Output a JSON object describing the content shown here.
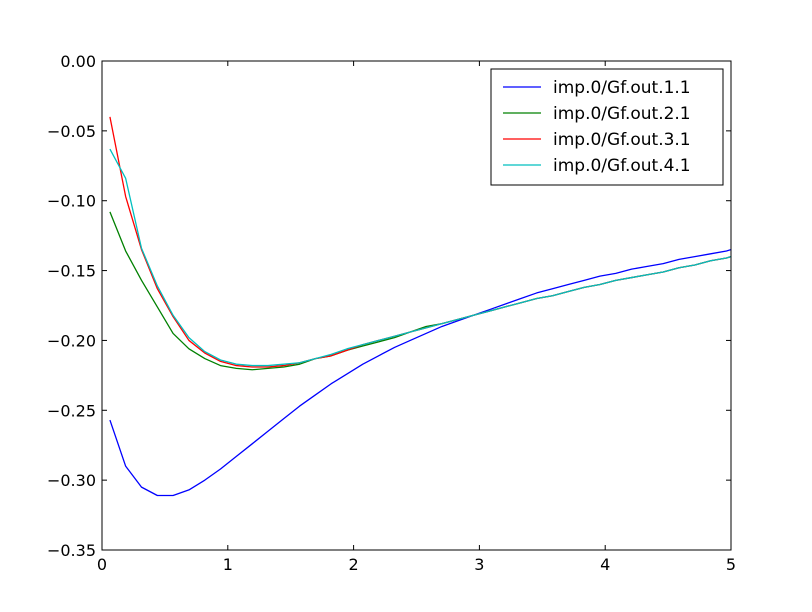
{
  "chart_data": {
    "type": "line",
    "title": "",
    "xlabel": "",
    "ylabel": "",
    "xlim": [
      0,
      5
    ],
    "ylim": [
      -0.35,
      0.0
    ],
    "grid": false,
    "legend_position": "top-right",
    "x_ticks": [
      {
        "value": 0,
        "label": "0"
      },
      {
        "value": 1,
        "label": "1"
      },
      {
        "value": 2,
        "label": "2"
      },
      {
        "value": 3,
        "label": "3"
      },
      {
        "value": 4,
        "label": "4"
      },
      {
        "value": 5,
        "label": "5"
      }
    ],
    "y_ticks": [
      {
        "value": 0.0,
        "label": "0.00"
      },
      {
        "value": -0.05,
        "label": "−0.05"
      },
      {
        "value": -0.1,
        "label": "−0.10"
      },
      {
        "value": -0.15,
        "label": "−0.15"
      },
      {
        "value": -0.2,
        "label": "−0.20"
      },
      {
        "value": -0.25,
        "label": "−0.25"
      },
      {
        "value": -0.3,
        "label": "−0.30"
      },
      {
        "value": -0.35,
        "label": "−0.35"
      }
    ],
    "series": [
      {
        "name": "imp.0/Gf.out.1.1",
        "color": "#0000ff",
        "x": [
          0.063,
          0.188,
          0.314,
          0.44,
          0.565,
          0.691,
          0.817,
          0.942,
          1.068,
          1.194,
          1.319,
          1.445,
          1.571,
          1.696,
          1.822,
          1.948,
          2.073,
          2.199,
          2.325,
          2.45,
          2.576,
          2.702,
          2.827,
          2.953,
          3.079,
          3.204,
          3.33,
          3.456,
          3.581,
          3.707,
          3.833,
          3.958,
          4.084,
          4.21,
          4.335,
          4.461,
          4.587,
          4.712,
          4.838,
          4.964,
          5.0
        ],
        "y": [
          -0.257,
          -0.29,
          -0.305,
          -0.311,
          -0.311,
          -0.307,
          -0.3,
          -0.292,
          -0.283,
          -0.274,
          -0.265,
          -0.256,
          -0.247,
          -0.239,
          -0.231,
          -0.224,
          -0.217,
          -0.211,
          -0.205,
          -0.2,
          -0.195,
          -0.19,
          -0.186,
          -0.182,
          -0.178,
          -0.174,
          -0.17,
          -0.166,
          -0.163,
          -0.16,
          -0.157,
          -0.154,
          -0.152,
          -0.149,
          -0.147,
          -0.145,
          -0.142,
          -0.14,
          -0.138,
          -0.136,
          -0.135
        ]
      },
      {
        "name": "imp.0/Gf.out.2.1",
        "color": "#008000",
        "x": [
          0.063,
          0.188,
          0.314,
          0.44,
          0.565,
          0.691,
          0.817,
          0.942,
          1.068,
          1.194,
          1.319,
          1.445,
          1.571,
          1.696,
          1.822,
          1.948,
          2.073,
          2.199,
          2.325,
          2.45,
          2.576,
          2.702,
          2.827,
          2.953,
          3.079,
          3.204,
          3.33,
          3.456,
          3.581,
          3.707,
          3.833,
          3.958,
          4.084,
          4.21,
          4.335,
          4.461,
          4.587,
          4.712,
          4.838,
          4.964,
          5.0
        ],
        "y": [
          -0.108,
          -0.136,
          -0.157,
          -0.176,
          -0.195,
          -0.206,
          -0.213,
          -0.218,
          -0.22,
          -0.221,
          -0.22,
          -0.219,
          -0.217,
          -0.213,
          -0.211,
          -0.207,
          -0.204,
          -0.201,
          -0.198,
          -0.194,
          -0.19,
          -0.188,
          -0.185,
          -0.182,
          -0.179,
          -0.176,
          -0.173,
          -0.17,
          -0.168,
          -0.165,
          -0.162,
          -0.16,
          -0.157,
          -0.155,
          -0.153,
          -0.151,
          -0.148,
          -0.146,
          -0.143,
          -0.141,
          -0.14
        ]
      },
      {
        "name": "imp.0/Gf.out.3.1",
        "color": "#ff0000",
        "x": [
          0.063,
          0.188,
          0.314,
          0.44,
          0.565,
          0.691,
          0.817,
          0.942,
          1.068,
          1.194,
          1.319,
          1.445,
          1.571,
          1.696,
          1.822,
          1.948,
          2.073,
          2.199,
          2.325,
          2.45,
          2.576,
          2.702,
          2.827,
          2.953,
          3.079,
          3.204,
          3.33,
          3.456,
          3.581,
          3.707,
          3.833,
          3.958,
          4.084,
          4.21,
          4.335,
          4.461,
          4.587,
          4.712,
          4.838,
          4.964,
          5.0
        ],
        "y": [
          -0.04,
          -0.097,
          -0.135,
          -0.163,
          -0.183,
          -0.2,
          -0.209,
          -0.215,
          -0.218,
          -0.219,
          -0.219,
          -0.218,
          -0.216,
          -0.213,
          -0.211,
          -0.207,
          -0.203,
          -0.2,
          -0.197,
          -0.194,
          -0.191,
          -0.188,
          -0.185,
          -0.182,
          -0.179,
          -0.176,
          -0.173,
          -0.17,
          -0.168,
          -0.165,
          -0.162,
          -0.16,
          -0.157,
          -0.155,
          -0.153,
          -0.151,
          -0.148,
          -0.146,
          -0.143,
          -0.141,
          -0.14
        ]
      },
      {
        "name": "imp.0/Gf.out.4.1",
        "color": "#00bfbf",
        "x": [
          0.063,
          0.188,
          0.314,
          0.44,
          0.565,
          0.691,
          0.817,
          0.942,
          1.068,
          1.194,
          1.319,
          1.445,
          1.571,
          1.696,
          1.822,
          1.948,
          2.073,
          2.199,
          2.325,
          2.45,
          2.576,
          2.702,
          2.827,
          2.953,
          3.079,
          3.204,
          3.33,
          3.456,
          3.581,
          3.707,
          3.833,
          3.958,
          4.084,
          4.21,
          4.335,
          4.461,
          4.587,
          4.712,
          4.838,
          4.964,
          5.0
        ],
        "y": [
          -0.063,
          -0.084,
          -0.134,
          -0.161,
          -0.182,
          -0.198,
          -0.208,
          -0.214,
          -0.217,
          -0.218,
          -0.218,
          -0.217,
          -0.216,
          -0.213,
          -0.21,
          -0.206,
          -0.203,
          -0.2,
          -0.197,
          -0.194,
          -0.191,
          -0.188,
          -0.185,
          -0.182,
          -0.179,
          -0.176,
          -0.173,
          -0.17,
          -0.168,
          -0.165,
          -0.162,
          -0.16,
          -0.157,
          -0.155,
          -0.153,
          -0.151,
          -0.148,
          -0.146,
          -0.143,
          -0.141,
          -0.14
        ]
      }
    ]
  }
}
